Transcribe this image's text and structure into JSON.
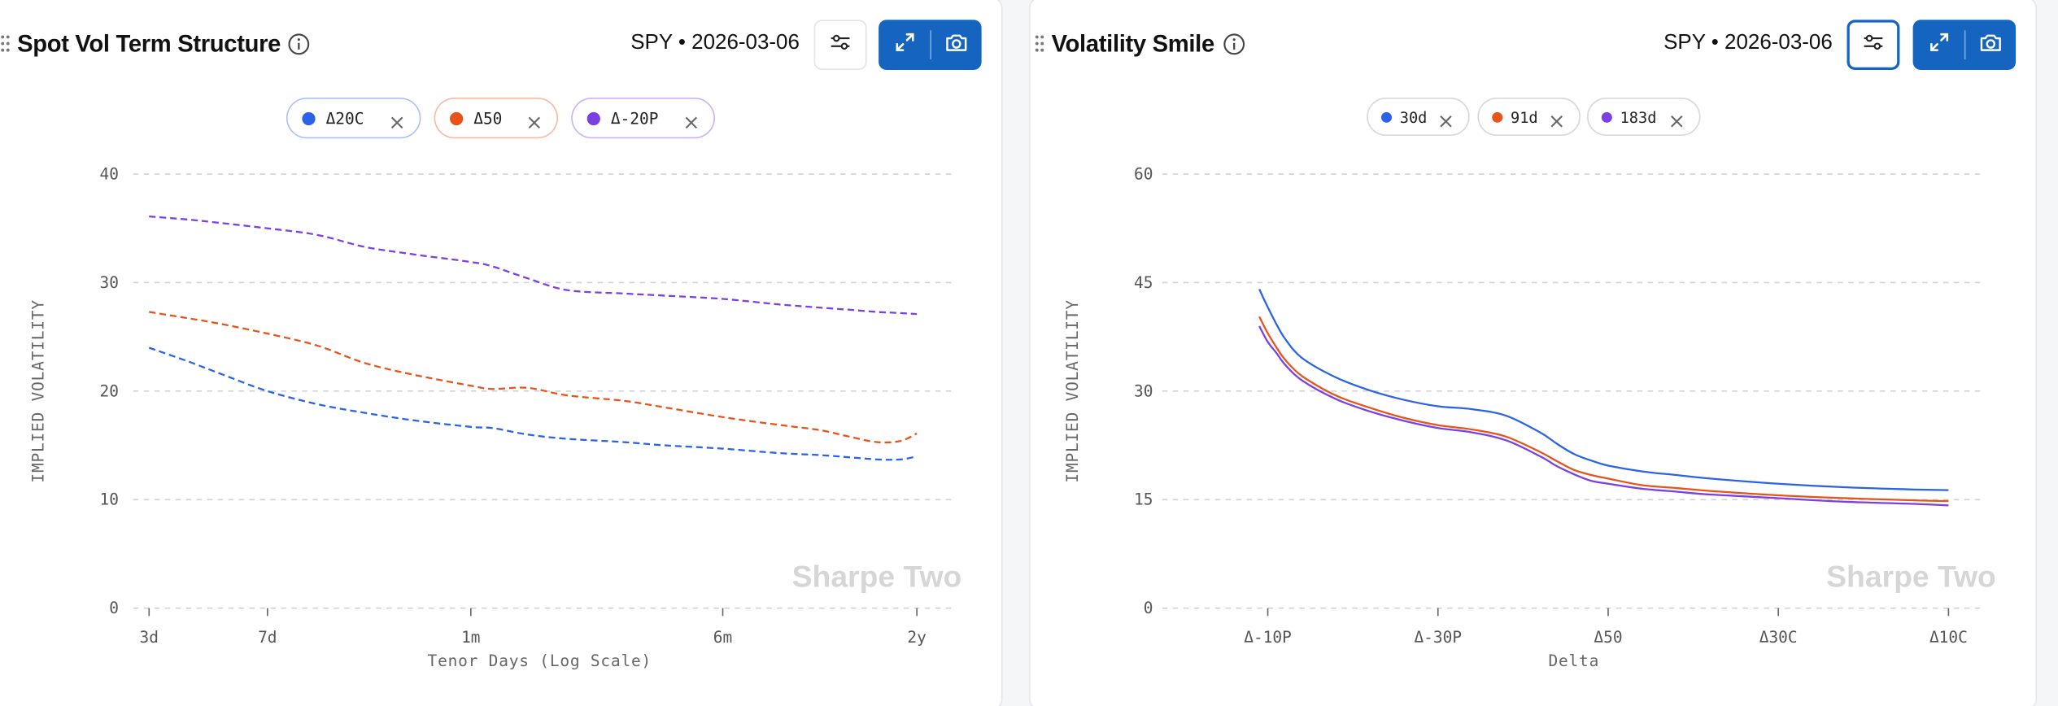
{
  "left_panel": {
    "title": "Spot Vol Term Structure",
    "symbol_date": "SPY • 2026-03-06",
    "chips": [
      {
        "label": "Δ20C",
        "color": "#2b63e8"
      },
      {
        "label": "Δ50",
        "color": "#e8531a"
      },
      {
        "label": "Δ-20P",
        "color": "#7b3fe4"
      }
    ],
    "watermark": "Sharpe Two"
  },
  "right_panel": {
    "title": "Volatility Smile",
    "symbol_date": "SPY • 2026-03-06",
    "chips": [
      {
        "label": "30d",
        "color": "#2b63e8"
      },
      {
        "label": "91d",
        "color": "#e8531a"
      },
      {
        "label": "183d",
        "color": "#7b3fe4"
      }
    ],
    "watermark": "Sharpe Two"
  },
  "icons": {
    "info": "info-circle-icon",
    "settings": "sliders-icon",
    "expand": "expand-arrows-icon",
    "camera": "camera-icon",
    "close": "close-x-icon",
    "drag": "drag-handle-icon"
  },
  "chart_data": [
    {
      "type": "line",
      "title": "Spot Vol Term Structure",
      "xlabel": "Tenor Days (Log Scale)",
      "ylabel": "IMPLIED VOLATILITY",
      "x_scale": "log",
      "x_ticks": [
        {
          "label": "3d",
          "days": 3
        },
        {
          "label": "7d",
          "days": 7
        },
        {
          "label": "1m",
          "days": 30
        },
        {
          "label": "6m",
          "days": 182
        },
        {
          "label": "2y",
          "days": 730
        }
      ],
      "ylim": [
        0,
        40
      ],
      "y_ticks": [
        0,
        10,
        20,
        30,
        40
      ],
      "grid": true,
      "line_style": "dashed",
      "x": [
        3,
        4,
        5,
        7,
        10,
        14,
        20,
        30,
        35,
        45,
        60,
        90,
        120,
        182,
        270,
        365,
        450,
        550,
        650,
        730
      ],
      "series": [
        {
          "name": "Δ20C",
          "color": "#2b63e8",
          "values": [
            24.0,
            22.7,
            21.6,
            20.0,
            18.8,
            18.0,
            17.3,
            16.7,
            16.6,
            16.0,
            15.6,
            15.3,
            15.0,
            14.7,
            14.3,
            14.1,
            13.9,
            13.7,
            13.7,
            14.0
          ]
        },
        {
          "name": "Δ50",
          "color": "#e8531a",
          "values": [
            27.3,
            26.7,
            26.2,
            25.3,
            24.2,
            22.6,
            21.5,
            20.5,
            20.2,
            20.3,
            19.6,
            19.1,
            18.5,
            17.6,
            16.9,
            16.4,
            15.8,
            15.3,
            15.4,
            16.1
          ]
        },
        {
          "name": "Δ-20P",
          "color": "#7b3fe4",
          "values": [
            36.1,
            35.8,
            35.5,
            35.0,
            34.4,
            33.3,
            32.6,
            31.9,
            31.5,
            30.4,
            29.3,
            29.0,
            28.8,
            28.5,
            28.0,
            27.7,
            27.5,
            27.3,
            27.2,
            27.1
          ]
        }
      ]
    },
    {
      "type": "line",
      "title": "Volatility Smile",
      "xlabel": "Delta",
      "ylabel": "IMPLIED VOLATILITY",
      "x_ticks": [
        "Δ-10P",
        "Δ-30P",
        "Δ50",
        "Δ30C",
        "Δ10C"
      ],
      "ylim": [
        0,
        60
      ],
      "y_ticks": [
        0,
        15,
        30,
        45,
        60
      ],
      "grid": true,
      "line_style": "solid",
      "x": [
        -0.05,
        0.0,
        0.05,
        0.1,
        0.2,
        0.4,
        0.6,
        0.8,
        1.0,
        1.2,
        1.4,
        1.6,
        1.7,
        1.8,
        1.9,
        2.0,
        2.2,
        2.4,
        2.6,
        3.0,
        3.4,
        3.8,
        4.0
      ],
      "x_positions_note_omitted": true,
      "series": [
        {
          "name": "30d",
          "color": "#2b63e8",
          "values": [
            44.1,
            41.6,
            39.3,
            37.3,
            34.6,
            31.9,
            30.1,
            28.8,
            27.9,
            27.5,
            26.6,
            24.3,
            22.7,
            21.3,
            20.4,
            19.7,
            18.9,
            18.4,
            17.9,
            17.2,
            16.7,
            16.4,
            16.3
          ]
        },
        {
          "name": "91d",
          "color": "#e8531a",
          "values": [
            40.3,
            38.0,
            36.1,
            34.4,
            32.1,
            29.4,
            27.7,
            26.3,
            25.3,
            24.7,
            23.7,
            21.6,
            20.3,
            19.1,
            18.4,
            17.9,
            17.0,
            16.6,
            16.2,
            15.6,
            15.2,
            14.9,
            14.8
          ]
        },
        {
          "name": "183d",
          "color": "#7b3fe4",
          "values": [
            39.0,
            36.8,
            35.3,
            33.7,
            31.5,
            28.9,
            27.2,
            25.9,
            24.9,
            24.3,
            23.2,
            21.0,
            19.6,
            18.5,
            17.6,
            17.2,
            16.5,
            16.1,
            15.7,
            15.2,
            14.7,
            14.4,
            14.2
          ]
        }
      ]
    }
  ]
}
